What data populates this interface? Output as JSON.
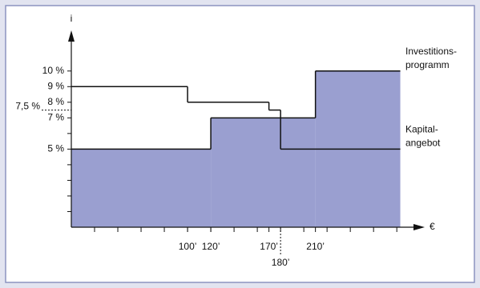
{
  "chart_data": {
    "type": "step",
    "y_label": "i",
    "x_label": "€",
    "xlim": [
      0,
      304
    ],
    "ylim": [
      0,
      12.6
    ],
    "step_end": 283,
    "xticks": [
      {
        "value": 100,
        "label": "100’"
      },
      {
        "value": 120,
        "label": "120’"
      },
      {
        "value": 170,
        "label": "170’"
      },
      {
        "value": 180,
        "label": "180’"
      },
      {
        "value": 210,
        "label": "210’"
      }
    ],
    "xminorticks": [
      20,
      40,
      60,
      80,
      100,
      120,
      140,
      160,
      180,
      200,
      220,
      240,
      260,
      280
    ],
    "yticks": [
      {
        "value": 10,
        "label": "10 %"
      },
      {
        "value": 9,
        "label": "9 %"
      },
      {
        "value": 8,
        "label": "8 %"
      },
      {
        "value": 7.5,
        "label": "7,5 %"
      },
      {
        "value": 7,
        "label": "7 %"
      },
      {
        "value": 5,
        "label": "5 %"
      }
    ],
    "yminorticks": [
      1,
      2,
      3,
      4,
      6
    ],
    "series": [
      {
        "label_lines": [
          "Kapital-",
          "angebot"
        ],
        "color": "#111111",
        "fill": null,
        "x": [
          0,
          100,
          170,
          180
        ],
        "values": [
          9,
          8,
          7.5,
          5
        ]
      },
      {
        "label_lines": [
          "Investitions-",
          "programm"
        ],
        "color": "#111111",
        "fill": "#9a9fd0",
        "x": [
          0,
          120,
          210
        ],
        "values": [
          5,
          7,
          10
        ]
      }
    ]
  }
}
